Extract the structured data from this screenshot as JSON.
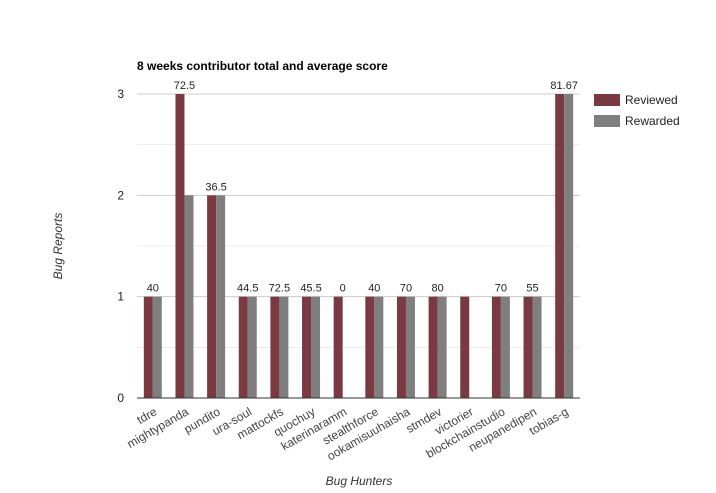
{
  "chart_data": {
    "type": "bar",
    "title": "8 weeks contributor total and average score",
    "xlabel": "Bug Hunters",
    "ylabel": "Bug Reports",
    "ylim": [
      0,
      3
    ],
    "yticks": [
      0,
      1,
      2,
      3
    ],
    "grid": true,
    "legend_position": "right",
    "categories": [
      "tdre",
      "mightypanda",
      "pundito",
      "ura-soul",
      "mattockfs",
      "quochuy",
      "katerinaramm",
      "stealthforce",
      "ookamisuuhaisha",
      "stmdev",
      "victorier",
      "blockchainstudio",
      "neupanedipen",
      "tobias-g"
    ],
    "series": [
      {
        "name": "Reviewed",
        "color": "#7b3a41",
        "values": [
          1,
          3,
          2,
          1,
          1,
          1,
          1,
          1,
          1,
          1,
          1,
          1,
          1,
          3
        ]
      },
      {
        "name": "Rewarded",
        "color": "#7f7f7f",
        "values": [
          1,
          2,
          2,
          1,
          1,
          1,
          0,
          1,
          1,
          1,
          0,
          1,
          1,
          3
        ]
      }
    ],
    "data_labels": [
      "40",
      "72.5",
      "36.5",
      "44.5",
      "72.5",
      "45.5",
      "0",
      "40",
      "70",
      "80",
      "",
      "70",
      "55",
      "81.67"
    ]
  }
}
